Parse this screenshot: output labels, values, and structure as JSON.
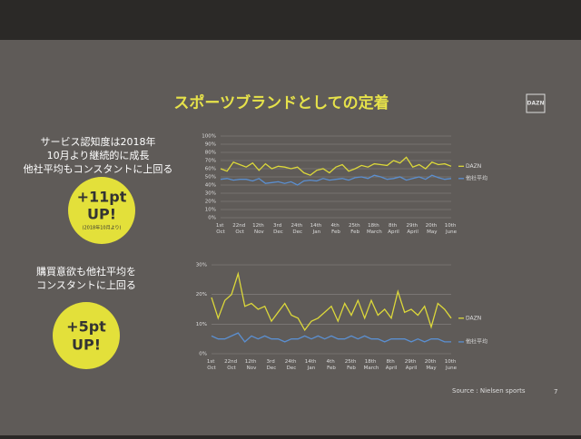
{
  "title": "スポーツブランドとしての定着",
  "logo": "DAZN",
  "left_texts": [
    {
      "lines": [
        "サービス認知度は2018年",
        "10月より継続的に成長",
        "他社平均もコンスタントに上回る"
      ],
      "badge": [
        "+11pt",
        "UP!"
      ],
      "badge_note": "(2018年10月より)"
    },
    {
      "lines": [
        "購買意欲も他社平均を",
        "コンスタントに上回る"
      ],
      "badge": [
        "+5pt",
        "UP!"
      ]
    }
  ],
  "source": "Source : Nielsen sports",
  "page_number": "7",
  "chart_data": [
    {
      "type": "line",
      "categories": [
        "1st Oct",
        null,
        null,
        "22nd Oct",
        null,
        null,
        "12th Nov",
        null,
        null,
        "3rd Dec",
        null,
        null,
        "24th Dec",
        null,
        null,
        "14th Jan",
        null,
        null,
        "4th Feb",
        null,
        null,
        "25th Feb",
        null,
        null,
        "18th March",
        null,
        null,
        "8th April",
        null,
        null,
        "29th April",
        null,
        null,
        "20th May",
        null,
        null,
        "10th June"
      ],
      "series": [
        {
          "name": "DAZN",
          "color": "#dcd83a",
          "values": [
            60,
            57,
            68,
            65,
            62,
            67,
            58,
            66,
            60,
            63,
            62,
            60,
            62,
            55,
            52,
            58,
            60,
            55,
            62,
            65,
            57,
            60,
            64,
            62,
            66,
            65,
            64,
            70,
            67,
            74,
            62,
            65,
            60,
            68,
            65,
            66,
            63
          ]
        },
        {
          "name": "他社平均",
          "color": "#5b8fd0",
          "values": [
            47,
            48,
            46,
            47,
            47,
            45,
            48,
            42,
            43,
            44,
            42,
            44,
            40,
            45,
            46,
            45,
            48,
            46,
            47,
            48,
            46,
            49,
            50,
            48,
            52,
            50,
            47,
            48,
            50,
            46,
            48,
            50,
            47,
            52,
            49,
            47,
            48
          ]
        }
      ],
      "ylim": [
        0,
        100
      ],
      "yticks": [
        {
          "value": 0,
          "label": "0%"
        },
        {
          "value": 10,
          "label": "10%"
        },
        {
          "value": 20,
          "label": "20%"
        },
        {
          "value": 30,
          "label": "30%"
        },
        {
          "value": 40,
          "label": "40%"
        },
        {
          "value": 50,
          "label": "50%"
        },
        {
          "value": 60,
          "label": "60%"
        },
        {
          "value": 70,
          "label": "70%"
        },
        {
          "value": 80,
          "label": "80%"
        },
        {
          "value": 90,
          "label": "90%"
        },
        {
          "value": 100,
          "label": "100%"
        }
      ],
      "grid": true
    },
    {
      "type": "line",
      "categories": [
        "1st Oct",
        null,
        null,
        "22nd Oct",
        null,
        null,
        "12th Nov",
        null,
        null,
        "3rd Dec",
        null,
        null,
        "24th Dec",
        null,
        null,
        "14th Jan",
        null,
        null,
        "4th Feb",
        null,
        null,
        "25th Feb",
        null,
        null,
        "18th March",
        null,
        null,
        "8th April",
        null,
        null,
        "29th April",
        null,
        null,
        "20th May",
        null,
        null,
        "10th June"
      ],
      "series": [
        {
          "name": "DAZN",
          "color": "#dcd83a",
          "values": [
            19,
            12,
            18,
            20,
            27,
            16,
            17,
            15,
            16,
            11,
            14,
            17,
            13,
            12,
            8,
            11,
            12,
            14,
            16,
            11,
            17,
            13,
            18,
            12,
            18,
            13,
            15,
            12,
            21,
            14,
            15,
            13,
            16,
            9,
            17,
            15,
            12
          ]
        },
        {
          "name": "他社平均",
          "color": "#5b8fd0",
          "values": [
            6,
            5,
            5,
            6,
            7,
            4,
            6,
            5,
            6,
            5,
            5,
            4,
            5,
            5,
            6,
            5,
            6,
            5,
            6,
            5,
            5,
            6,
            5,
            6,
            5,
            5,
            4,
            5,
            5,
            5,
            4,
            5,
            4,
            5,
            5,
            4,
            4
          ]
        }
      ],
      "ylim": [
        0,
        30
      ],
      "yticks": [
        {
          "value": 0,
          "label": "0%"
        },
        {
          "value": 10,
          "label": "10%"
        },
        {
          "value": 20,
          "label": "20%"
        },
        {
          "value": 30,
          "label": "30%"
        }
      ],
      "grid": true
    }
  ]
}
